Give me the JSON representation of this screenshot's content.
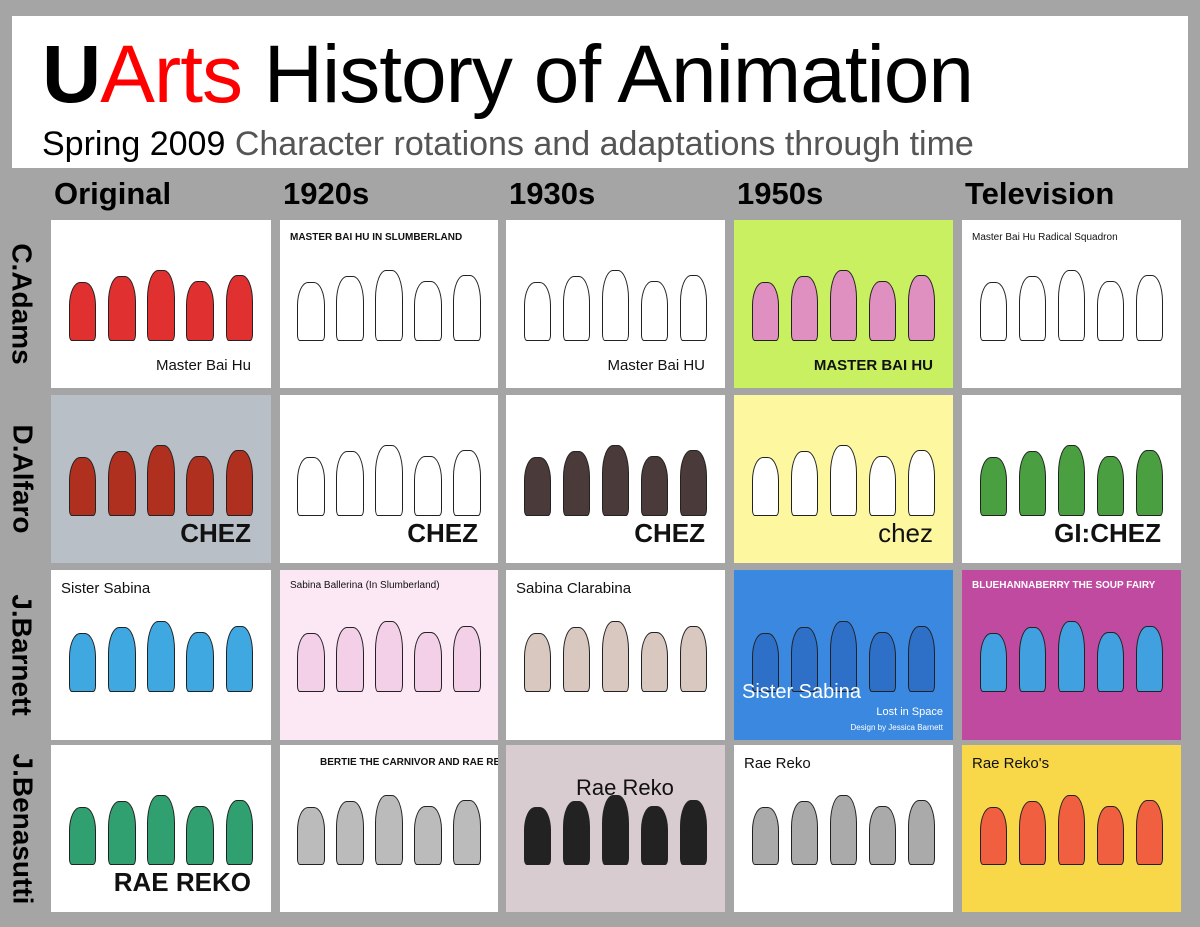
{
  "header": {
    "title_u": "U",
    "title_arts": "Arts",
    "title_rest": " History of Animation",
    "subtitle_a": "Spring 2009 ",
    "subtitle_b": "Character rotations and adaptations through time"
  },
  "columns": [
    "Original",
    "1920s",
    "1930s",
    "1950s",
    "Television"
  ],
  "rows": [
    {
      "label": "C.Adams",
      "cells": [
        {
          "caption": "Master Bai Hu",
          "bg": "#ffffff",
          "fig": "#e03030"
        },
        {
          "caption": "MASTER BAI HU IN SLUMBERLAND",
          "bg": "#ffffff",
          "fig": "#ffffff"
        },
        {
          "caption": "Master Bai HU",
          "bg": "#ffffff",
          "fig": "#ffffff"
        },
        {
          "caption": "MASTER  BAI  HU",
          "bg": "#c8f060",
          "fig": "#e090c0"
        },
        {
          "caption": "Master Bai Hu Radical Squadron",
          "bg": "#ffffff",
          "fig": "#ffffff"
        }
      ]
    },
    {
      "label": "D.Alfaro",
      "cells": [
        {
          "caption": "CHEZ",
          "bg": "#b9bfc6",
          "fig": "#b03020"
        },
        {
          "caption": "CHEZ",
          "bg": "#ffffff",
          "fig": "#ffffff"
        },
        {
          "caption": "CHEZ",
          "bg": "#ffffff",
          "fig": "#4a3a3a"
        },
        {
          "caption": "chez",
          "bg": "#fdf7a0",
          "fig": "#ffffff"
        },
        {
          "caption": "GI:CHEZ",
          "bg": "#ffffff",
          "fig": "#4aa040"
        }
      ]
    },
    {
      "label": "J.Barnett",
      "cells": [
        {
          "caption": "Sister Sabina",
          "bg": "#ffffff",
          "fig": "#40a8e0"
        },
        {
          "caption": "Sabina Ballerina (In Slumberland)",
          "bg": "#fbe8f4",
          "fig": "#f4d0e8"
        },
        {
          "caption": "Sabina Clarabina",
          "bg": "#ffffff",
          "fig": "#d8c8c0"
        },
        {
          "caption": "Sister Sabina",
          "bg": "#3a88e0",
          "fig": "#2e70c8",
          "sub": "Lost in Space",
          "sub2": "Design by Jessica Barnett"
        },
        {
          "caption": "BLUEHANNABERRY THE SOUP FAIRY",
          "bg": "#c04aa0",
          "fig": "#40a0e0"
        }
      ]
    },
    {
      "label": "J.Benasutti",
      "cells": [
        {
          "caption": "RAE REKO",
          "bg": "#ffffff",
          "fig": "#30a070"
        },
        {
          "caption": "BERTIE THE CARNIVOR AND RAE REKO",
          "bg": "#ffffff",
          "fig": "#bbbbbb"
        },
        {
          "caption": "Rae Reko",
          "bg": "#d8ccd0",
          "fig": "#222222"
        },
        {
          "caption": "Rae Reko",
          "bg": "#ffffff",
          "fig": "#aaaaaa"
        },
        {
          "caption": "Rae Reko's",
          "bg": "#f8d848",
          "fig": "#f06040"
        }
      ]
    }
  ]
}
